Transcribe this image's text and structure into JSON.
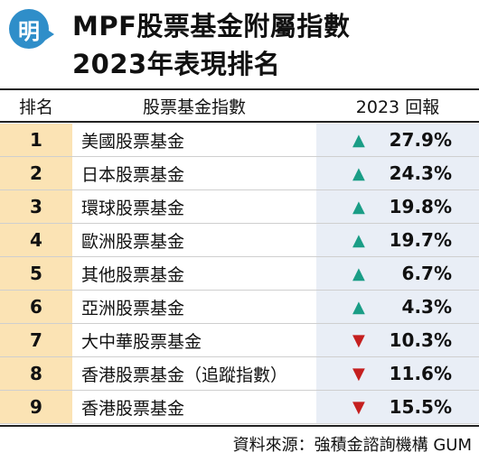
{
  "logo": {
    "char": "明",
    "color": "#2f8ec9"
  },
  "title": {
    "line1": "MPF股票基金附屬指數",
    "line2": "2023年表現排名"
  },
  "columns": {
    "rank": "排名",
    "name": "股票基金指數",
    "return": "2023 回報"
  },
  "colors": {
    "rank_bg": "#fbe3b4",
    "return_bg": "#e9eef6",
    "up": "#1a9d86",
    "down": "#c51f1f"
  },
  "rows": [
    {
      "rank": "1",
      "name": "美國股票基金",
      "arrow": "▲",
      "direction": "up",
      "value": "27.9%"
    },
    {
      "rank": "2",
      "name": "日本股票基金",
      "arrow": "▲",
      "direction": "up",
      "value": "24.3%"
    },
    {
      "rank": "3",
      "name": "環球股票基金",
      "arrow": "▲",
      "direction": "up",
      "value": "19.8%"
    },
    {
      "rank": "4",
      "name": "歐洲股票基金",
      "arrow": "▲",
      "direction": "up",
      "value": "19.7%"
    },
    {
      "rank": "5",
      "name": "其他股票基金",
      "arrow": "▲",
      "direction": "up",
      "value": "6.7%"
    },
    {
      "rank": "6",
      "name": "亞洲股票基金",
      "arrow": "▲",
      "direction": "up",
      "value": "4.3%"
    },
    {
      "rank": "7",
      "name": "大中華股票基金",
      "arrow": "▼",
      "direction": "down",
      "value": "10.3%"
    },
    {
      "rank": "8",
      "name": "香港股票基金（追蹤指數）",
      "arrow": "▼",
      "direction": "down",
      "value": "11.6%"
    },
    {
      "rank": "9",
      "name": "香港股票基金",
      "arrow": "▼",
      "direction": "down",
      "value": "15.5%"
    }
  ],
  "source": "資料來源：強積金諮詢機構 GUM"
}
